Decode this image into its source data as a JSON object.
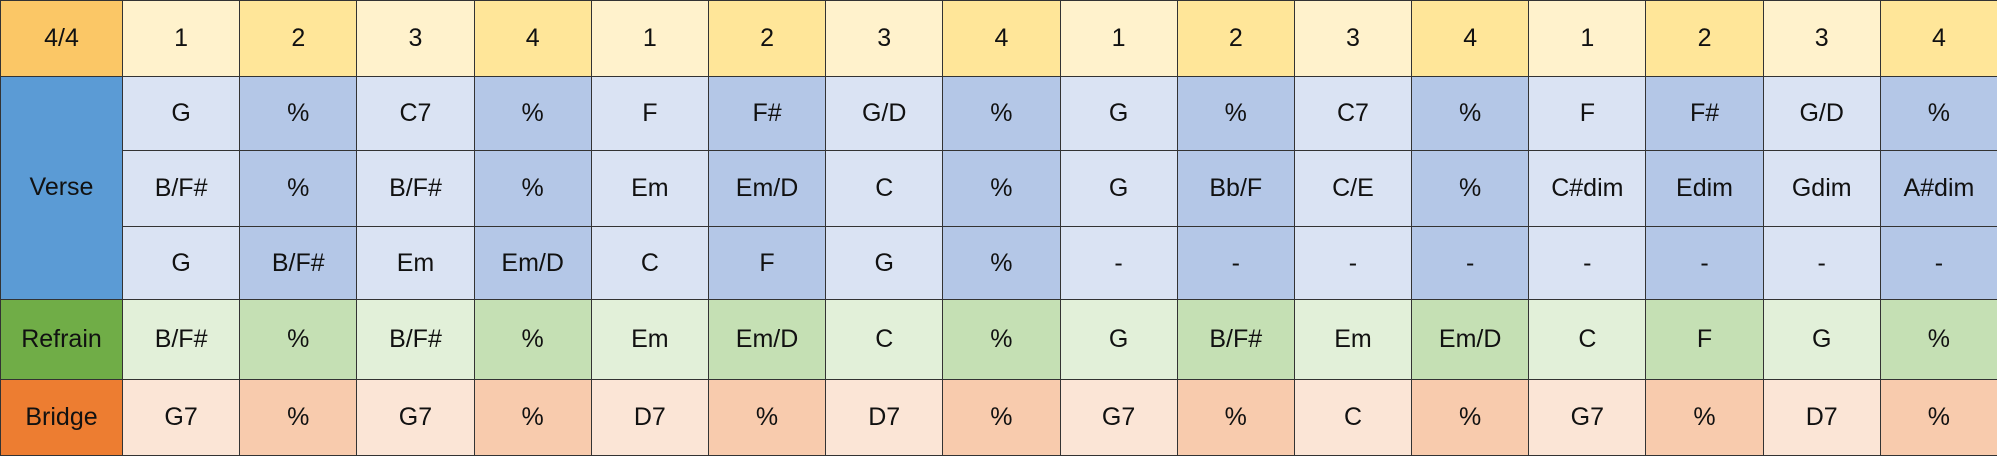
{
  "header": {
    "label": "4/4",
    "beats": [
      "1",
      "2",
      "3",
      "4",
      "1",
      "2",
      "3",
      "4",
      "1",
      "2",
      "3",
      "4",
      "1",
      "2",
      "3",
      "4"
    ]
  },
  "sections": [
    {
      "name": "Verse",
      "rows": [
        [
          "G",
          "%",
          "C7",
          "%",
          "F",
          "F#",
          "G/D",
          "%",
          "G",
          "%",
          "C7",
          "%",
          "F",
          "F#",
          "G/D",
          "%"
        ],
        [
          "B/F#",
          "%",
          "B/F#",
          "%",
          "Em",
          "Em/D",
          "C",
          "%",
          "G",
          "Bb/F",
          "C/E",
          "%",
          "C#dim",
          "Edim",
          "Gdim",
          "A#dim"
        ],
        [
          "G",
          "B/F#",
          "Em",
          "Em/D",
          "C",
          "F",
          "G",
          "%",
          "-",
          "-",
          "-",
          "-",
          "-",
          "-",
          "-",
          "-"
        ]
      ]
    },
    {
      "name": "Refrain",
      "rows": [
        [
          "B/F#",
          "%",
          "B/F#",
          "%",
          "Em",
          "Em/D",
          "C",
          "%",
          "G",
          "B/F#",
          "Em",
          "Em/D",
          "C",
          "F",
          "G",
          "%"
        ]
      ]
    },
    {
      "name": "Bridge",
      "rows": [
        [
          "G7",
          "%",
          "G7",
          "%",
          "D7",
          "%",
          "D7",
          "%",
          "G7",
          "%",
          "C",
          "%",
          "G7",
          "%",
          "D7",
          "%"
        ]
      ]
    }
  ]
}
